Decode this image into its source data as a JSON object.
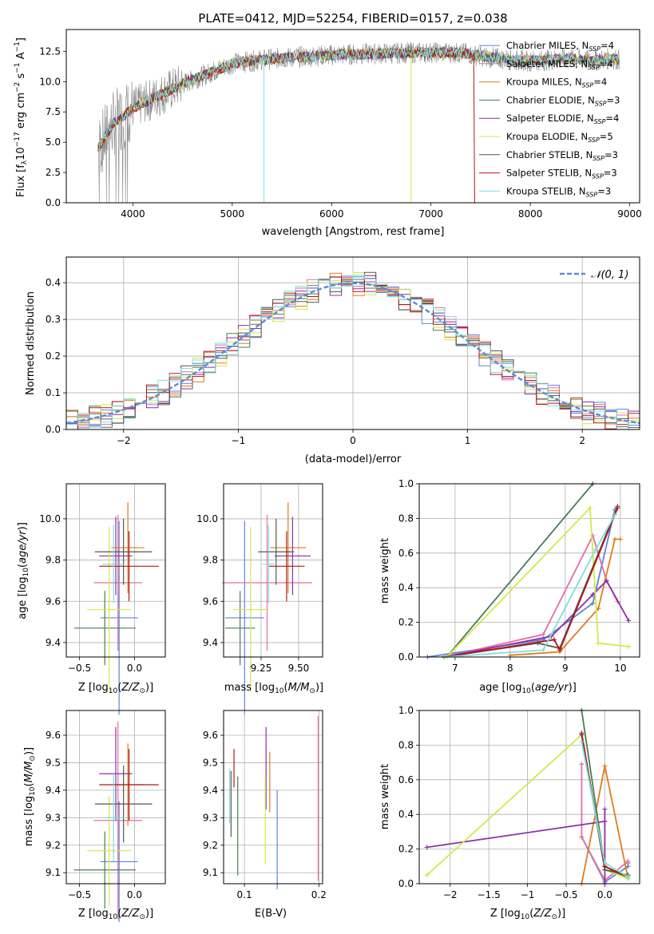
{
  "series": [
    {
      "name": "Chabrier MILES",
      "nssp": "4",
      "color": "#5b84d6"
    },
    {
      "name": "Salpeter MILES",
      "nssp": "4",
      "color": "#e26fa8"
    },
    {
      "name": "Kroupa MILES",
      "nssp": "4",
      "color": "#e07b1f"
    },
    {
      "name": "Chabrier ELODIE",
      "nssp": "3",
      "color": "#4a7d52"
    },
    {
      "name": "Salpeter ELODIE",
      "nssp": "4",
      "color": "#8e2fa8"
    },
    {
      "name": "Kroupa ELODIE",
      "nssp": "5",
      "color": "#d4e84a"
    },
    {
      "name": "Chabrier STELIB",
      "nssp": "3",
      "color": "#555555"
    },
    {
      "name": "Salpeter STELIB",
      "nssp": "3",
      "color": "#b01818"
    },
    {
      "name": "Kroupa STELIB",
      "nssp": "3",
      "color": "#7fdede"
    }
  ],
  "chart_data": [
    {
      "id": "spectrum",
      "type": "line",
      "title": "PLATE=0412, MJD=52254, FIBERID=0157, z=0.038",
      "xlabel": "wavelength [Angstrom, rest frame]",
      "ylabel": "Flux [f_λ 10^-17 erg cm^-2 s^-1 A^-1]",
      "xlim": [
        3330,
        9100
      ],
      "ylim": [
        0,
        14.3
      ],
      "xticks": [
        4000,
        5000,
        6000,
        7000,
        8000,
        9000
      ],
      "yticks": [
        0.0,
        2.5,
        5.0,
        7.5,
        10.0,
        12.5
      ],
      "data_color": "#888888",
      "continuum": {
        "x": [
          3650,
          3800,
          4000,
          4200,
          4500,
          4800,
          5000,
          5300,
          5600,
          6000,
          6400,
          6800,
          7200,
          7400
        ],
        "y": [
          4.5,
          6.5,
          7.8,
          8.6,
          9.8,
          10.8,
          11.5,
          11.8,
          12.0,
          12.2,
          12.3,
          12.4,
          12.4,
          12.3
        ]
      },
      "tail": {
        "x": [
          7400,
          7600,
          7800,
          8000,
          8200,
          8400,
          8600,
          8800,
          8900
        ],
        "y": [
          12.2,
          12.0,
          11.8,
          11.7,
          11.8,
          11.9,
          11.7,
          11.9,
          11.8
        ]
      }
    },
    {
      "id": "residuals",
      "type": "histogram",
      "xlabel": "(data-model)/error",
      "ylabel": "Normed distribution",
      "xlim": [
        -2.5,
        2.5
      ],
      "ylim": [
        0,
        0.47
      ],
      "xticks": [
        -2,
        -1,
        0,
        1,
        2
      ],
      "yticks": [
        0.0,
        0.1,
        0.2,
        0.3,
        0.4
      ],
      "legend": "N(0,1)",
      "legend_position": "upper right",
      "bin_width": 0.1
    },
    {
      "id": "age_vs_Z",
      "type": "scatter",
      "xlabel": "Z [log10(Z/Z☉)]",
      "ylabel": "age  [log10(age/yr)]",
      "xlim": [
        -0.62,
        0.28
      ],
      "ylim": [
        9.33,
        10.17
      ],
      "xticks": [
        -0.5,
        0.0
      ],
      "yticks": [
        9.4,
        9.6,
        9.8,
        10.0
      ],
      "points": [
        {
          "x": -0.14,
          "y": 9.52,
          "xerr": 0.17,
          "yerr": 0.47
        },
        {
          "x": -0.15,
          "y": 9.69,
          "xerr": 0.22,
          "yerr": 0.33
        },
        {
          "x": -0.06,
          "y": 9.86,
          "xerr": 0.15,
          "yerr": 0.22
        },
        {
          "x": -0.27,
          "y": 9.47,
          "xerr": 0.28,
          "yerr": 0.18
        },
        {
          "x": -0.17,
          "y": 9.82,
          "xerr": 0.15,
          "yerr": 0.19
        },
        {
          "x": -0.23,
          "y": 9.56,
          "xerr": 0.2,
          "yerr": 0.4
        },
        {
          "x": -0.1,
          "y": 9.84,
          "xerr": 0.26,
          "yerr": 0.16
        },
        {
          "x": -0.05,
          "y": 9.77,
          "xerr": 0.27,
          "yerr": 0.17
        },
        {
          "x": -0.19,
          "y": 9.78,
          "xerr": 0.1,
          "yerr": 0.19
        }
      ]
    },
    {
      "id": "age_vs_mass",
      "type": "scatter",
      "xlabel": "mass [log10(M/M☉)]",
      "ylabel": "",
      "xlim": [
        9.0,
        9.66
      ],
      "ylim": [
        9.33,
        10.17
      ],
      "xticks": [
        9.25,
        9.5
      ],
      "yticks": [
        9.4,
        9.6,
        9.8,
        10.0
      ],
      "points": [
        {
          "x": 9.14,
          "y": 9.52,
          "xerr": 0.13,
          "yerr": 0.47
        },
        {
          "x": 9.29,
          "y": 9.69,
          "xerr": 0.3,
          "yerr": 0.33
        },
        {
          "x": 9.43,
          "y": 9.86,
          "xerr": 0.12,
          "yerr": 0.22
        },
        {
          "x": 9.11,
          "y": 9.47,
          "xerr": 0.1,
          "yerr": 0.18
        },
        {
          "x": 9.46,
          "y": 9.82,
          "xerr": 0.12,
          "yerr": 0.19
        },
        {
          "x": 9.18,
          "y": 9.56,
          "xerr": 0.12,
          "yerr": 0.4
        },
        {
          "x": 9.35,
          "y": 9.84,
          "xerr": 0.12,
          "yerr": 0.16
        },
        {
          "x": 9.42,
          "y": 9.77,
          "xerr": 0.12,
          "yerr": 0.17
        },
        {
          "x": 9.3,
          "y": 9.78,
          "xerr": 0.04,
          "yerr": 0.19
        }
      ]
    },
    {
      "id": "mass_weight_vs_age",
      "type": "line",
      "xlabel": "age  [log10(age/yr)]",
      "ylabel": "mass weight",
      "xlim": [
        6.35,
        10.35
      ],
      "ylim": [
        0,
        1.0
      ],
      "xticks": [
        7,
        8,
        9,
        10
      ],
      "yticks": [
        0.0,
        0.2,
        0.4,
        0.6,
        0.8,
        1.0
      ],
      "lines": [
        {
          "x": [
            6.5,
            8.6,
            9.5,
            9.9
          ],
          "y": [
            0.0,
            0.1,
            0.31,
            0.85
          ]
        },
        {
          "x": [
            6.8,
            8.6,
            9.5,
            9.75,
            9.95
          ],
          "y": [
            0.0,
            0.13,
            0.7,
            0.44,
            0.32
          ]
        },
        {
          "x": [
            8.0,
            8.9,
            9.6,
            9.9,
            10.0
          ],
          "y": [
            0.01,
            0.03,
            0.28,
            0.68,
            0.68
          ]
        },
        {
          "x": [
            6.85,
            9.5
          ],
          "y": [
            0.0,
            1.0
          ]
        },
        {
          "x": [
            6.8,
            8.75,
            9.5,
            9.75,
            10.15
          ],
          "y": [
            0.0,
            0.12,
            0.36,
            0.44,
            0.21
          ]
        },
        {
          "x": [
            6.85,
            9.45,
            9.6,
            10.15
          ],
          "y": [
            0.0,
            0.86,
            0.08,
            0.06
          ]
        },
        {
          "x": [
            6.8,
            8.5,
            8.9,
            9.95
          ],
          "y": [
            0.0,
            0.08,
            0.05,
            0.87
          ]
        },
        {
          "x": [
            6.8,
            8.8,
            8.9,
            9.95
          ],
          "y": [
            0.0,
            0.1,
            0.04,
            0.86
          ]
        },
        {
          "x": [
            6.8,
            8.6,
            9.55,
            9.9
          ],
          "y": [
            0.0,
            0.04,
            0.62,
            0.82
          ]
        }
      ]
    },
    {
      "id": "mass_vs_Z",
      "type": "scatter",
      "xlabel": "Z [log10(Z/Z☉)]",
      "ylabel": "mass [log10(M/M☉)]",
      "xlim": [
        -0.62,
        0.28
      ],
      "ylim": [
        9.06,
        9.69
      ],
      "xticks": [
        -0.5,
        0.0
      ],
      "yticks": [
        9.1,
        9.2,
        9.3,
        9.4,
        9.5,
        9.6
      ],
      "points": [
        {
          "x": -0.14,
          "y": 9.14,
          "xerr": 0.17,
          "yerr": 0.22
        },
        {
          "x": -0.15,
          "y": 9.29,
          "xerr": 0.22,
          "yerr": 0.36
        },
        {
          "x": -0.06,
          "y": 9.42,
          "xerr": 0.15,
          "yerr": 0.15
        },
        {
          "x": -0.27,
          "y": 9.11,
          "xerr": 0.28,
          "yerr": 0.14
        },
        {
          "x": -0.17,
          "y": 9.46,
          "xerr": 0.15,
          "yerr": 0.17
        },
        {
          "x": -0.23,
          "y": 9.18,
          "xerr": 0.2,
          "yerr": 0.2
        },
        {
          "x": -0.1,
          "y": 9.35,
          "xerr": 0.26,
          "yerr": 0.14
        },
        {
          "x": -0.05,
          "y": 9.42,
          "xerr": 0.27,
          "yerr": 0.13
        },
        {
          "x": -0.19,
          "y": 9.3,
          "xerr": 0.1,
          "yerr": 0.16
        }
      ]
    },
    {
      "id": "mass_vs_EBV",
      "type": "scatter",
      "xlabel": "E(B-V)",
      "ylabel": "",
      "xlim": [
        0.072,
        0.205
      ],
      "ylim": [
        9.06,
        9.69
      ],
      "xticks": [
        0.1,
        0.2
      ],
      "yticks": [
        9.1,
        9.2,
        9.3,
        9.4,
        9.5,
        9.6
      ],
      "points": [
        {
          "x": 0.144,
          "y": 9.22,
          "yerr": 0.18
        },
        {
          "x": 0.199,
          "y": 9.37,
          "yerr": 0.3
        },
        {
          "x": 0.134,
          "y": 9.43,
          "yerr": 0.11
        },
        {
          "x": 0.091,
          "y": 9.27,
          "yerr": 0.18
        },
        {
          "x": 0.129,
          "y": 9.48,
          "yerr": 0.15
        },
        {
          "x": 0.128,
          "y": 9.29,
          "yerr": 0.16
        },
        {
          "x": 0.082,
          "y": 9.35,
          "yerr": 0.12
        },
        {
          "x": 0.086,
          "y": 9.48,
          "yerr": 0.07
        },
        {
          "x": 0.08,
          "y": 9.38,
          "yerr": 0.1
        }
      ]
    },
    {
      "id": "mass_weight_vs_Z",
      "type": "line",
      "xlabel": "Z [log10(Z/Z☉)]",
      "ylabel": "mass weight",
      "xlim": [
        -2.4,
        0.45
      ],
      "ylim": [
        0,
        1.0
      ],
      "xticks": [
        -2.0,
        -1.5,
        -1.0,
        -0.5,
        0.0
      ],
      "yticks": [
        0.0,
        0.2,
        0.4,
        0.6,
        0.8,
        1.0
      ],
      "lines": [
        {
          "x": [
            -0.3,
            0.0,
            0.3,
            0.3
          ],
          "y": [
            0.27,
            0.01,
            0.1,
            0.12
          ]
        },
        {
          "x": [
            -0.3,
            -0.3,
            0.0,
            0.3
          ],
          "y": [
            0.69,
            0.27,
            0.02,
            0.13
          ]
        },
        {
          "x": [
            -0.3,
            0.0,
            0.3
          ],
          "y": [
            0.0,
            0.68,
            0.03
          ]
        },
        {
          "x": [
            -0.3,
            0.0,
            0.3
          ],
          "y": [
            1.0,
            0.1,
            0.03
          ]
        },
        {
          "x": [
            -2.3,
            0.0,
            0.0,
            0.0
          ],
          "y": [
            0.21,
            0.36,
            0.0,
            0.43
          ]
        },
        {
          "x": [
            -2.3,
            -0.3,
            0.0,
            0.3
          ],
          "y": [
            0.05,
            0.86,
            0.08,
            0.03
          ]
        },
        {
          "x": [
            -0.3,
            0.0,
            0.3
          ],
          "y": [
            0.87,
            0.08,
            0.05
          ]
        },
        {
          "x": [
            -0.3,
            0.0,
            0.3
          ],
          "y": [
            0.86,
            0.1,
            0.04
          ]
        },
        {
          "x": [
            -0.3,
            0.0,
            0.3
          ],
          "y": [
            0.82,
            0.12,
            0.04
          ]
        }
      ]
    }
  ]
}
